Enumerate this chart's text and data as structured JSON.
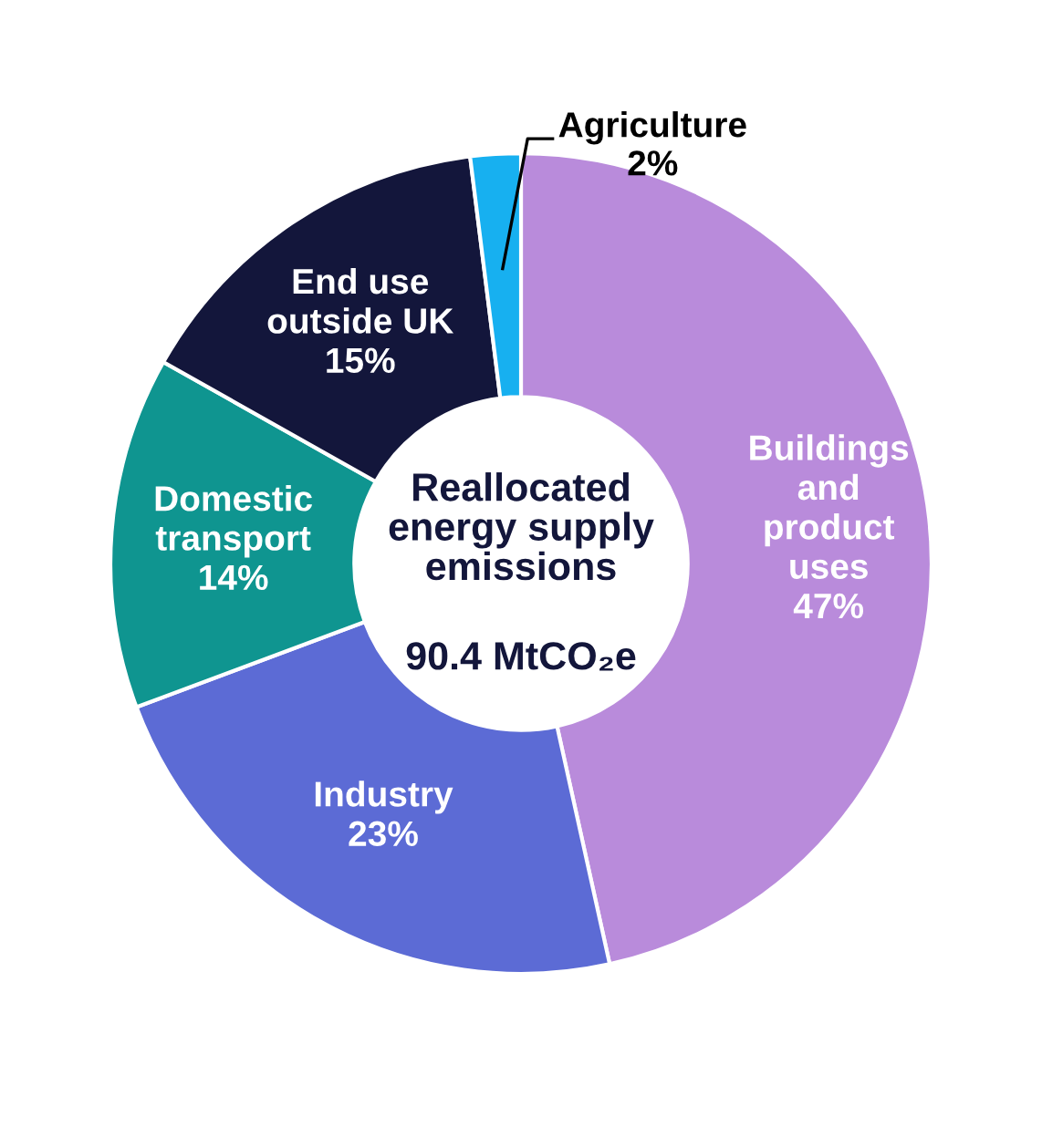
{
  "chart_data": {
    "type": "donut",
    "categories": [
      "Buildings\nand\nproduct\nuses",
      "Industry",
      "Domestic\ntransport",
      "End use\noutside UK",
      "Agriculture"
    ],
    "values": [
      47,
      23,
      14,
      15,
      2
    ],
    "value_labels": [
      "47%",
      "23%",
      "14%",
      "15%",
      "2%"
    ],
    "colors": [
      "#b98bdb",
      "#5c6bd5",
      "#0f9590",
      "#13163b",
      "#17b0f0"
    ],
    "annotations": [
      "Reallocated\nenergy supply\nemissions",
      "90.4 MtCO₂e"
    ],
    "legend": false
  }
}
